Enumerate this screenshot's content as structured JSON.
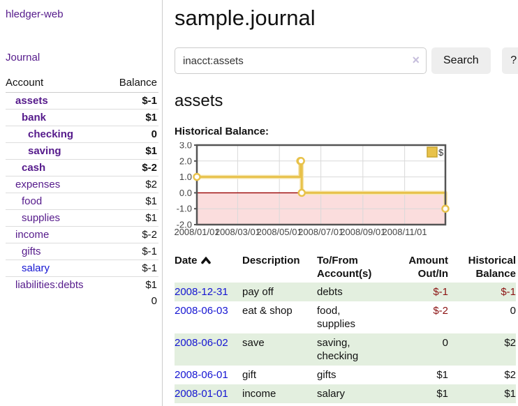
{
  "app": {
    "title": "hledger-web",
    "nav_journal": "Journal"
  },
  "sidebar": {
    "header": {
      "account": "Account",
      "balance": "Balance"
    },
    "accounts": [
      {
        "name": "assets",
        "indent": 1,
        "bold": true,
        "blue": false,
        "balance": "$-1",
        "balance_class": "amt-negdark"
      },
      {
        "name": "bank",
        "indent": 2,
        "bold": true,
        "blue": false,
        "balance": "$1",
        "balance_class": ""
      },
      {
        "name": "checking",
        "indent": 3,
        "bold": true,
        "blue": false,
        "balance": "0",
        "balance_class": ""
      },
      {
        "name": "saving",
        "indent": 3,
        "bold": true,
        "blue": false,
        "balance": "$1",
        "balance_class": ""
      },
      {
        "name": "cash",
        "indent": 2,
        "bold": true,
        "blue": false,
        "balance": "$-2",
        "balance_class": "amt-negdark"
      },
      {
        "name": "expenses",
        "indent": 1,
        "bold": false,
        "blue": false,
        "balance": "$2",
        "balance_class": ""
      },
      {
        "name": "food",
        "indent": 2,
        "bold": false,
        "blue": false,
        "balance": "$1",
        "balance_class": ""
      },
      {
        "name": "supplies",
        "indent": 2,
        "bold": false,
        "blue": false,
        "balance": "$1",
        "balance_class": ""
      },
      {
        "name": "income",
        "indent": 1,
        "bold": false,
        "blue": false,
        "balance": "$-2",
        "balance_class": "amt-neglight"
      },
      {
        "name": "gifts",
        "indent": 2,
        "bold": false,
        "blue": false,
        "balance": "$-1",
        "balance_class": "amt-neglight"
      },
      {
        "name": "salary",
        "indent": 2,
        "bold": false,
        "blue": true,
        "balance": "$-1",
        "balance_class": "amt-neglight"
      },
      {
        "name": "liabilities:debts",
        "indent": 1,
        "bold": false,
        "blue": false,
        "balance": "$1",
        "balance_class": ""
      }
    ],
    "total": "0"
  },
  "main": {
    "title": "sample.journal",
    "search": {
      "value": "inacct:assets",
      "clear_icon": "×",
      "button": "Search",
      "help_button": "?"
    },
    "account_heading": "assets"
  },
  "chart_data": {
    "type": "line",
    "step": true,
    "title": "Historical Balance:",
    "legend_label": "$",
    "legend_position": "top-right",
    "ylim": [
      -2,
      3
    ],
    "y_ticks": [
      {
        "value": 3,
        "label": "3.0"
      },
      {
        "value": 2,
        "label": "2.0"
      },
      {
        "value": 1,
        "label": "1.0"
      },
      {
        "value": 0,
        "label": "0.0"
      },
      {
        "value": -1,
        "label": "-1.0"
      },
      {
        "value": -2,
        "label": "-2.0"
      }
    ],
    "x_ticks": [
      {
        "pos": 0.0,
        "label": "2008/01/01"
      },
      {
        "pos": 0.164,
        "label": "2008/03/01"
      },
      {
        "pos": 0.332,
        "label": "2008/05/01"
      },
      {
        "pos": 0.499,
        "label": "2008/07/01"
      },
      {
        "pos": 0.668,
        "label": "2008/09/01"
      },
      {
        "pos": 0.836,
        "label": "2008/11/01"
      }
    ],
    "points": [
      {
        "date": "2008-01-01",
        "pos": 0.0,
        "value": 1
      },
      {
        "date": "2008-06-01",
        "pos": 0.416,
        "value": 2
      },
      {
        "date": "2008-06-02",
        "pos": 0.419,
        "value": 2
      },
      {
        "date": "2008-06-03",
        "pos": 0.422,
        "value": 0
      },
      {
        "date": "2008-12-31",
        "pos": 1.0,
        "value": -1
      }
    ],
    "colors": {
      "series": "#e8c24b",
      "series_halo": "#f6e7b5",
      "negative_region": "#fbdddd",
      "zero_line": "#990000",
      "grid": "#d9d9d9",
      "border": "#545454",
      "legend_border": "#c9a52f"
    }
  },
  "register": {
    "columns": [
      {
        "label": "Date"
      },
      {
        "label": "Description"
      },
      {
        "label": "To/From Account(s)"
      },
      {
        "label": "Amount Out/In"
      },
      {
        "label": "Historical Balance"
      }
    ],
    "rows": [
      {
        "date": "2008-12-31",
        "description": "pay off",
        "accounts": "debts",
        "amount": "$-1",
        "amount_negative": true,
        "balance": "$-1",
        "balance_negative": true
      },
      {
        "date": "2008-06-03",
        "description": "eat & shop",
        "accounts": "food, supplies",
        "amount": "$-2",
        "amount_negative": true,
        "balance": "0",
        "balance_negative": false
      },
      {
        "date": "2008-06-02",
        "description": "save",
        "accounts": "saving, checking",
        "amount": "0",
        "amount_negative": false,
        "balance": "$2",
        "balance_negative": false
      },
      {
        "date": "2008-06-01",
        "description": "gift",
        "accounts": "gifts",
        "amount": "$1",
        "amount_negative": false,
        "balance": "$2",
        "balance_negative": false
      },
      {
        "date": "2008-01-01",
        "description": "income",
        "accounts": "salary",
        "amount": "$1",
        "amount_negative": false,
        "balance": "$1",
        "balance_negative": false
      }
    ]
  },
  "colors": {
    "link_purple": "#551a8b",
    "link_blue": "#1414d2",
    "negative_dark": "#8b1212",
    "negative_light": "#c0706c",
    "row_stripe_green": "#e3efdf",
    "button_bg": "#eeeeee"
  }
}
